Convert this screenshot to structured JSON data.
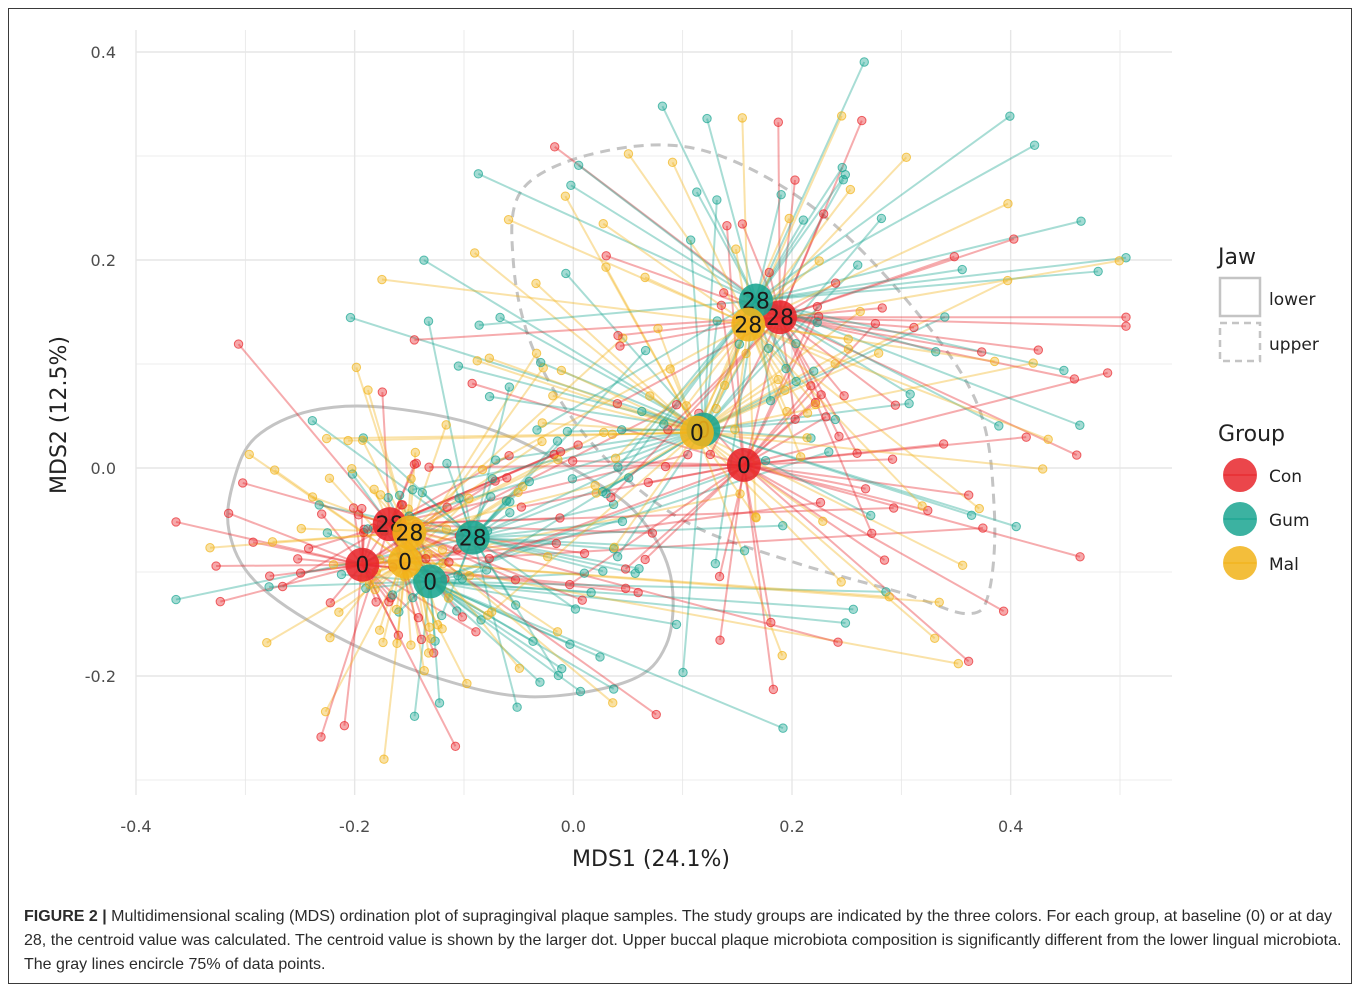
{
  "chart_data": {
    "type": "scatter",
    "xlabel": "MDS1 (24.1%)",
    "ylabel": "MDS2 (12.5%)",
    "xlim": [
      -0.4,
      0.5
    ],
    "ylim": [
      -0.3,
      0.4
    ],
    "x_ticks": [
      -0.4,
      -0.2,
      0.0,
      0.2,
      0.4
    ],
    "y_ticks": [
      -0.2,
      0.0,
      0.2,
      0.4
    ],
    "x_tick_labels": [
      "-0.4",
      "-0.2",
      "0.0",
      "0.2",
      "0.4"
    ],
    "y_tick_labels": [
      "-0.2",
      "0.0",
      "0.2",
      "0.4"
    ],
    "grid": true,
    "legend_placement": "right",
    "legends": {
      "jaw": {
        "title": "Jaw",
        "entries": [
          "lower",
          "upper"
        ]
      },
      "group": {
        "title": "Group",
        "entries": [
          "Con",
          "Gum",
          "Mal"
        ]
      }
    },
    "colors": {
      "Con": "#e8262b",
      "Gum": "#1aa591",
      "Mal": "#f1b319",
      "ellipse": "#c4c4c4",
      "grid": "#e6e6e6"
    },
    "centroids": [
      {
        "group": "Con",
        "jaw": "lower",
        "day": "0",
        "x": -0.193,
        "y": -0.093
      },
      {
        "group": "Gum",
        "jaw": "lower",
        "day": "0",
        "x": -0.131,
        "y": -0.109
      },
      {
        "group": "Mal",
        "jaw": "lower",
        "day": "0",
        "x": -0.154,
        "y": -0.09
      },
      {
        "group": "Con",
        "jaw": "lower",
        "day": "28",
        "x": -0.168,
        "y": -0.054
      },
      {
        "group": "Gum",
        "jaw": "lower",
        "day": "28",
        "x": -0.092,
        "y": -0.067
      },
      {
        "group": "Mal",
        "jaw": "lower",
        "day": "28",
        "x": -0.15,
        "y": -0.062
      },
      {
        "group": "Con",
        "jaw": "upper",
        "day": "0",
        "x": 0.156,
        "y": 0.003
      },
      {
        "group": "Gum",
        "jaw": "upper",
        "day": "0",
        "x": 0.119,
        "y": 0.037
      },
      {
        "group": "Mal",
        "jaw": "upper",
        "day": "0",
        "x": 0.113,
        "y": 0.034
      },
      {
        "group": "Con",
        "jaw": "upper",
        "day": "28",
        "x": 0.189,
        "y": 0.145
      },
      {
        "group": "Gum",
        "jaw": "upper",
        "day": "28",
        "x": 0.167,
        "y": 0.161
      },
      {
        "group": "Mal",
        "jaw": "upper",
        "day": "28",
        "x": 0.16,
        "y": 0.138
      }
    ],
    "ellipses": [
      {
        "jaw": "lower",
        "style": "solid",
        "outline": [
          [
            -0.31,
            -0.01
          ],
          [
            -0.29,
            0.03
          ],
          [
            -0.24,
            0.055
          ],
          [
            -0.17,
            0.058
          ],
          [
            -0.07,
            0.035
          ],
          [
            0.03,
            -0.02
          ],
          [
            0.07,
            -0.06
          ],
          [
            0.09,
            -0.11
          ],
          [
            0.085,
            -0.17
          ],
          [
            0.05,
            -0.205
          ],
          [
            -0.04,
            -0.22
          ],
          [
            -0.13,
            -0.2
          ],
          [
            -0.22,
            -0.16
          ],
          [
            -0.29,
            -0.11
          ],
          [
            -0.315,
            -0.06
          ]
        ]
      },
      {
        "jaw": "upper",
        "style": "dashed",
        "outline": [
          [
            -0.045,
            0.27
          ],
          [
            0.03,
            0.305
          ],
          [
            0.12,
            0.305
          ],
          [
            0.22,
            0.25
          ],
          [
            0.31,
            0.155
          ],
          [
            0.37,
            0.06
          ],
          [
            0.385,
            -0.04
          ],
          [
            0.38,
            -0.12
          ],
          [
            0.36,
            -0.14
          ],
          [
            0.3,
            -0.12
          ],
          [
            0.2,
            -0.09
          ],
          [
            0.1,
            -0.05
          ],
          [
            0.02,
            0.02
          ],
          [
            -0.035,
            0.11
          ],
          [
            -0.055,
            0.2
          ]
        ]
      }
    ]
  },
  "caption": {
    "label": "FIGURE 2 |",
    "text": " Multidimensional scaling (MDS) ordination plot of supragingival plaque samples. The study groups are indicated by the three colors. For each group, at baseline (0) or at day 28, the centroid value was calculated. The centroid value is shown by the larger dot. Upper buccal plaque microbiota composition is significantly different from the lower lingual microbiota. The gray lines encircle 75% of data points."
  }
}
